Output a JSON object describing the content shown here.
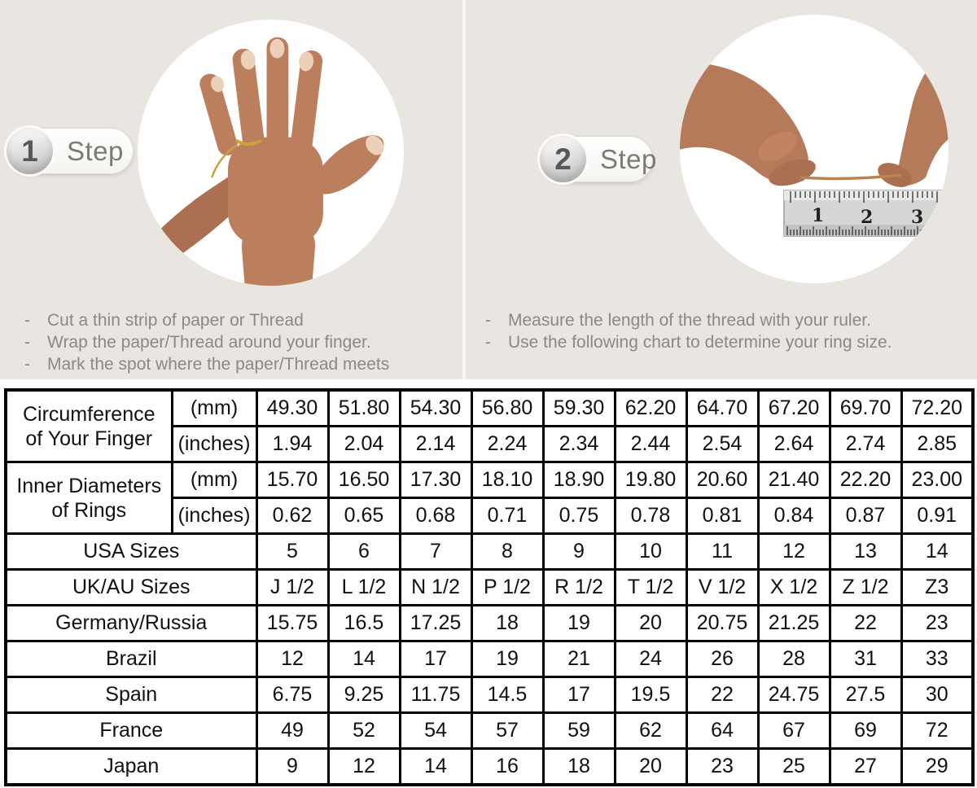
{
  "steps": [
    {
      "number": "1",
      "label": "Step",
      "bullet": "-",
      "instructions": [
        "Cut a thin strip of paper or Thread",
        "Wrap the paper/Thread around your finger.",
        "Mark the spot where the paper/Thread meets"
      ]
    },
    {
      "number": "2",
      "label": "Step",
      "bullet": "-",
      "instructions": [
        "Measure the length of the thread with your ruler.",
        "Use the following chart to determine your ring size."
      ]
    }
  ],
  "images": {
    "left_photo": "hand-with-thread-wrapped-around-ring-finger",
    "right_photo": "two-hands-measuring-thread-length-with-ruler",
    "ruler_marks": [
      "1",
      "2",
      "3"
    ]
  },
  "colors": {
    "top_background": "#e9e6e2",
    "shaded_cell": "#d9d9d9",
    "table_border": "#000000",
    "instruction_text": "#8b8984",
    "skin": "#b87e5d",
    "thread_gold": "#c9a23d"
  },
  "table": {
    "header_groups": [
      {
        "label_lines": [
          "Circumference",
          "of Your Finger"
        ],
        "rows": [
          {
            "unit": "(mm)",
            "shaded": true,
            "values": [
              "49.30",
              "51.80",
              "54.30",
              "56.80",
              "59.30",
              "62.20",
              "64.70",
              "67.20",
              "69.70",
              "72.20"
            ]
          },
          {
            "unit": "(inches)",
            "shaded": false,
            "values": [
              "1.94",
              "2.04",
              "2.14",
              "2.24",
              "2.34",
              "2.44",
              "2.54",
              "2.64",
              "2.74",
              "2.85"
            ]
          }
        ]
      },
      {
        "label_lines": [
          "Inner Diameters",
          "of Rings"
        ],
        "rows": [
          {
            "unit": "(mm)",
            "shaded": false,
            "values": [
              "15.70",
              "16.50",
              "17.30",
              "18.10",
              "18.90",
              "19.80",
              "20.60",
              "21.40",
              "22.20",
              "23.00"
            ]
          },
          {
            "unit": "(inches)",
            "shaded": false,
            "values": [
              "0.62",
              "0.65",
              "0.68",
              "0.71",
              "0.75",
              "0.78",
              "0.81",
              "0.84",
              "0.87",
              "0.91"
            ]
          }
        ]
      }
    ],
    "country_rows": [
      {
        "label": "USA Sizes",
        "shaded": true,
        "values": [
          "5",
          "6",
          "7",
          "8",
          "9",
          "10",
          "11",
          "12",
          "13",
          "14"
        ]
      },
      {
        "label": "UK/AU Sizes",
        "shaded": false,
        "values": [
          "J 1/2",
          "L 1/2",
          "N 1/2",
          "P 1/2",
          "R 1/2",
          "T 1/2",
          "V 1/2",
          "X 1/2",
          "Z 1/2",
          "Z3"
        ]
      },
      {
        "label": "Germany/Russia",
        "shaded": false,
        "values": [
          "15.75",
          "16.5",
          "17.25",
          "18",
          "19",
          "20",
          "20.75",
          "21.25",
          "22",
          "23"
        ]
      },
      {
        "label": "Brazil",
        "shaded": false,
        "values": [
          "12",
          "14",
          "17",
          "19",
          "21",
          "24",
          "26",
          "28",
          "31",
          "33"
        ]
      },
      {
        "label": "Spain",
        "shaded": false,
        "values": [
          "6.75",
          "9.25",
          "11.75",
          "14.5",
          "17",
          "19.5",
          "22",
          "24.75",
          "27.5",
          "30"
        ]
      },
      {
        "label": "France",
        "shaded": false,
        "values": [
          "49",
          "52",
          "54",
          "57",
          "59",
          "62",
          "64",
          "67",
          "69",
          "72"
        ]
      },
      {
        "label": "Japan",
        "shaded": false,
        "values": [
          "9",
          "12",
          "14",
          "16",
          "18",
          "20",
          "23",
          "25",
          "27",
          "29"
        ]
      }
    ]
  }
}
